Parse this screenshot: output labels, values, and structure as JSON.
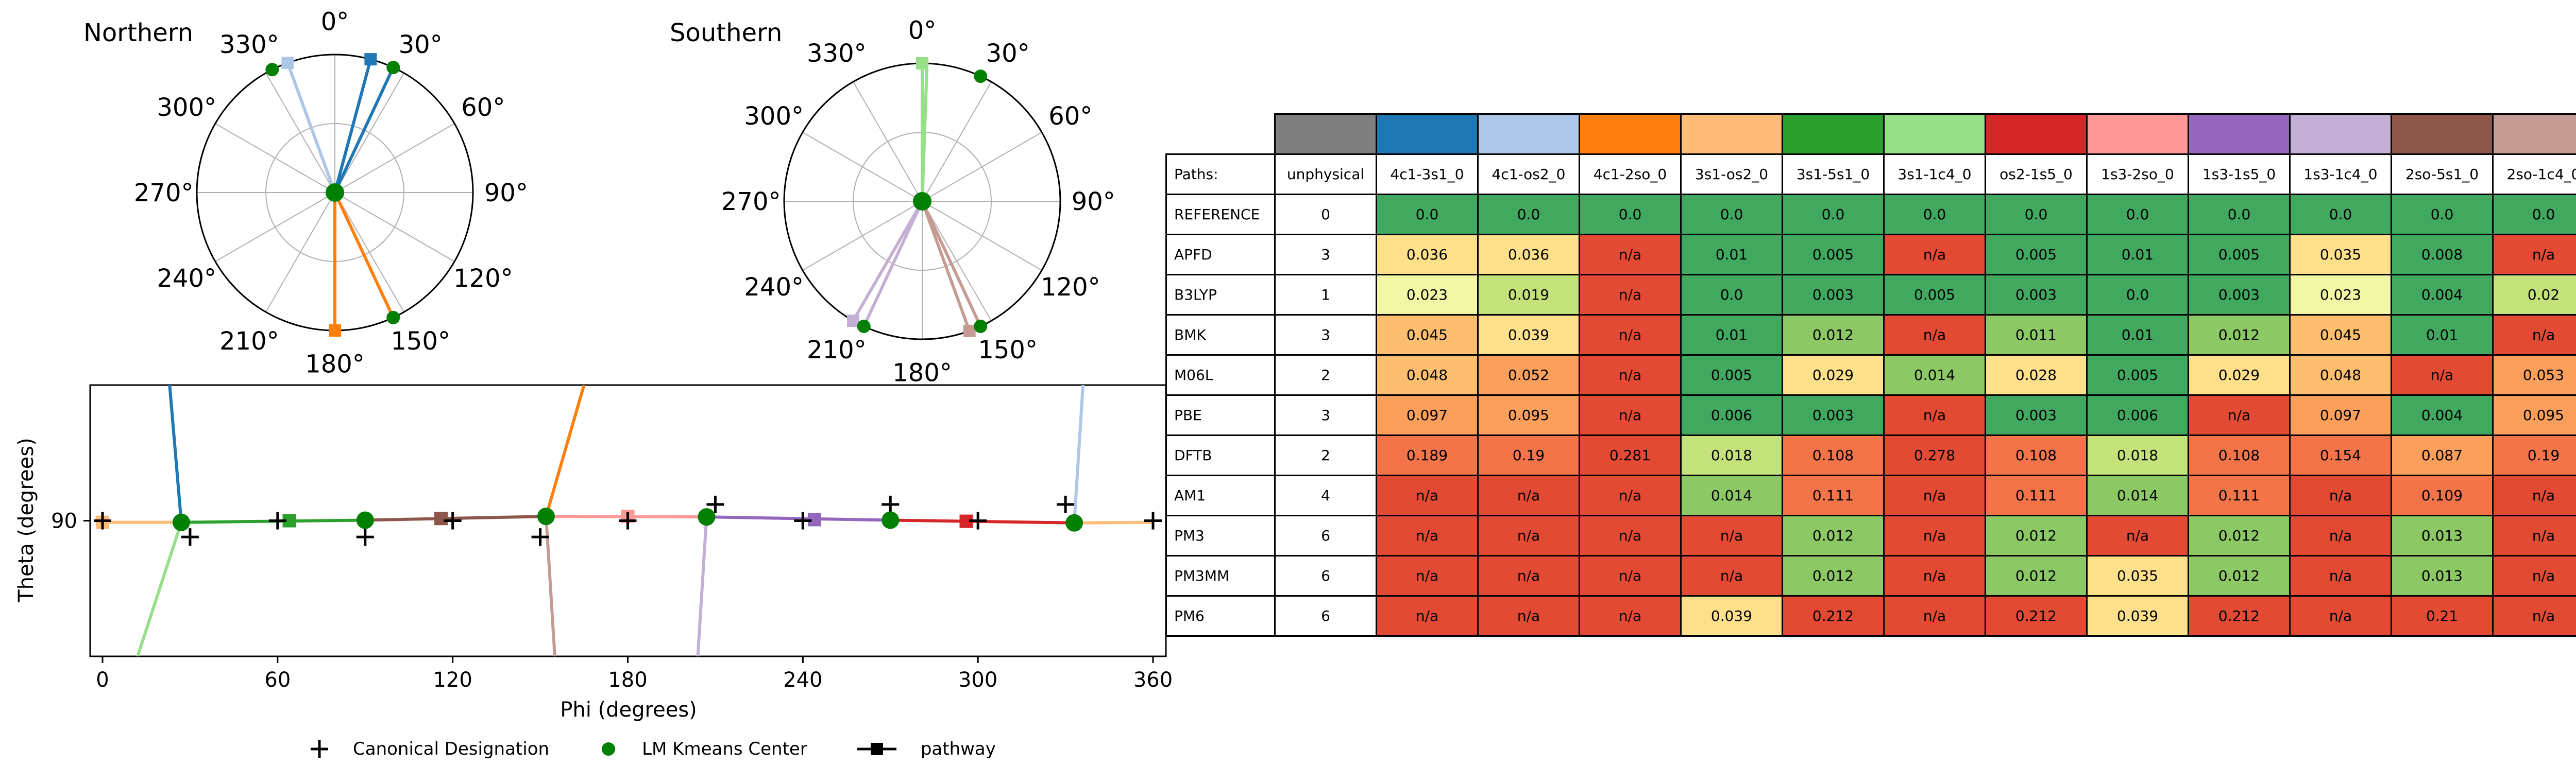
{
  "chart_data": [
    {
      "type": "polar",
      "title": "Northern",
      "angle_ticks": [
        "0°",
        "30°",
        "60°",
        "90°",
        "120°",
        "150°",
        "180°",
        "210°",
        "240°",
        "270°",
        "300°",
        "330°"
      ],
      "paths": [
        {
          "color": "#1f77b4",
          "from_angle": 0,
          "to_angle": 25,
          "to_r": 1.0,
          "square_angle": 15
        },
        {
          "color": "#aec7e8",
          "from_angle": 0,
          "to_angle": 340,
          "to_r": 1.0,
          "square_angle": 340
        },
        {
          "color": "#ff7f0e",
          "from_angle": 0,
          "to_angle": 155,
          "to_r": 1.0,
          "square_angle": 180
        }
      ],
      "centers": [
        {
          "angle": 0,
          "r": 0
        },
        {
          "angle": 25,
          "r": 1.0
        },
        {
          "angle": 333,
          "r": 1.0
        },
        {
          "angle": 155,
          "r": 1.0
        }
      ]
    },
    {
      "type": "polar",
      "title": "Southern",
      "angle_ticks": [
        "0°",
        "30°",
        "60°",
        "90°",
        "120°",
        "150°",
        "180°",
        "210°",
        "240°",
        "270°",
        "300°",
        "330°"
      ],
      "paths": [
        {
          "color": "#98df8a",
          "from_angle": 180,
          "to_angle": 2,
          "to_r": 1.0,
          "square_angle": 0
        },
        {
          "color": "#c49c94",
          "from_angle": 180,
          "to_angle": 155,
          "to_r": 1.0,
          "square_angle": 160
        },
        {
          "color": "#c5b0d5",
          "from_angle": 180,
          "to_angle": 205,
          "to_r": 1.0,
          "square_angle": 210
        }
      ],
      "centers": [
        {
          "angle": 0,
          "r": 0
        },
        {
          "angle": 25,
          "r": 1.0
        },
        {
          "angle": 205,
          "r": 1.0
        },
        {
          "angle": 155,
          "r": 1.0
        }
      ]
    },
    {
      "type": "line",
      "xlabel": "Phi (degrees)",
      "ylabel": "Theta (degrees)",
      "xlim": [
        0,
        360
      ],
      "ylim": [
        65,
        115
      ],
      "xticks": [
        0,
        60,
        120,
        180,
        240,
        300,
        360
      ],
      "yticks": [
        90
      ],
      "canonical": [
        {
          "x": 0,
          "y": 90
        },
        {
          "x": 30,
          "y": 87
        },
        {
          "x": 60,
          "y": 90
        },
        {
          "x": 90,
          "y": 87
        },
        {
          "x": 120,
          "y": 90
        },
        {
          "x": 150,
          "y": 87
        },
        {
          "x": 180,
          "y": 90
        },
        {
          "x": 210,
          "y": 93
        },
        {
          "x": 240,
          "y": 90
        },
        {
          "x": 270,
          "y": 93
        },
        {
          "x": 300,
          "y": 90
        },
        {
          "x": 330,
          "y": 93
        },
        {
          "x": 360,
          "y": 90
        }
      ],
      "centers": [
        {
          "x": 27,
          "y": 89.7
        },
        {
          "x": 90,
          "y": 90.1
        },
        {
          "x": 152,
          "y": 90.8
        },
        {
          "x": 207,
          "y": 90.7
        },
        {
          "x": 270,
          "y": 90.1
        },
        {
          "x": 333,
          "y": 89.6
        }
      ],
      "paths": [
        {
          "color": "#ffbb78",
          "points": [
            [
              0,
              89.7
            ],
            [
              27,
              89.7
            ]
          ],
          "square": [
            0,
            89.7
          ]
        },
        {
          "color": "#ffbb78",
          "points": [
            [
              333,
              89.6
            ],
            [
              360,
              89.7
            ]
          ],
          "square": null
        },
        {
          "color": "#2ca02c",
          "points": [
            [
              27,
              89.7
            ],
            [
              90,
              90.1
            ]
          ],
          "square": [
            64,
            90.0
          ]
        },
        {
          "color": "#8c564b",
          "points": [
            [
              90,
              90.1
            ],
            [
              152,
              90.8
            ]
          ],
          "square": [
            116,
            90.4
          ]
        },
        {
          "color": "#ff9896",
          "points": [
            [
              152,
              90.8
            ],
            [
              207,
              90.7
            ]
          ],
          "square": [
            180,
            90.8
          ]
        },
        {
          "color": "#9467bd",
          "points": [
            [
              207,
              90.7
            ],
            [
              270,
              90.1
            ]
          ],
          "square": [
            244,
            90.2
          ]
        },
        {
          "color": "#d62728",
          "points": [
            [
              270,
              90.1
            ],
            [
              333,
              89.6
            ]
          ],
          "square": [
            296,
            89.9
          ]
        },
        {
          "color": "#1f77b4",
          "points": [
            [
              27,
              89.7
            ],
            [
              23,
              115
            ]
          ],
          "square": null
        },
        {
          "color": "#98df8a",
          "points": [
            [
              27,
              89.7
            ],
            [
              12,
              65
            ]
          ],
          "square": null
        },
        {
          "color": "#ff7f0e",
          "points": [
            [
              152,
              90.8
            ],
            [
              165,
              115
            ]
          ],
          "square": null
        },
        {
          "color": "#c49c94",
          "points": [
            [
              152,
              90.8
            ],
            [
              155,
              65
            ]
          ],
          "square": null
        },
        {
          "color": "#c5b0d5",
          "points": [
            [
              207,
              90.7
            ],
            [
              204,
              65
            ]
          ],
          "square": null
        },
        {
          "color": "#aec7e8",
          "points": [
            [
              333,
              89.6
            ],
            [
              336,
              115
            ]
          ],
          "square": null
        }
      ]
    }
  ],
  "legend": {
    "canonical": "Canonical Designation",
    "center": "LM Kmeans Center",
    "pathway": "pathway"
  },
  "table": {
    "header_label": "Paths:",
    "columns": [
      {
        "name": "unphysical",
        "color": "#7f7f7f"
      },
      {
        "name": "4c1-3s1_0",
        "color": "#1f77b4"
      },
      {
        "name": "4c1-os2_0",
        "color": "#aec7e8"
      },
      {
        "name": "4c1-2so_0",
        "color": "#ff7f0e"
      },
      {
        "name": "3s1-os2_0",
        "color": "#ffbb78"
      },
      {
        "name": "3s1-5s1_0",
        "color": "#2ca02c"
      },
      {
        "name": "3s1-1c4_0",
        "color": "#98df8a"
      },
      {
        "name": "os2-1s5_0",
        "color": "#d62728"
      },
      {
        "name": "1s3-2so_0",
        "color": "#ff9896"
      },
      {
        "name": "1s3-1s5_0",
        "color": "#9467bd"
      },
      {
        "name": "1s3-1c4_0",
        "color": "#c5b0d5"
      },
      {
        "name": "2so-5s1_0",
        "color": "#8c564b"
      },
      {
        "name": "2so-1c4_0",
        "color": "#c49c94"
      }
    ],
    "rows": [
      {
        "method": "REFERENCE",
        "unphysical": "0",
        "values": [
          "0.0",
          "0.0",
          "0.0",
          "0.0",
          "0.0",
          "0.0",
          "0.0",
          "0.0",
          "0.0",
          "0.0",
          "0.0",
          "0.0"
        ]
      },
      {
        "method": "APFD",
        "unphysical": "3",
        "values": [
          "0.036",
          "0.036",
          "n/a",
          "0.01",
          "0.005",
          "n/a",
          "0.005",
          "0.01",
          "0.005",
          "0.035",
          "0.008",
          "n/a"
        ]
      },
      {
        "method": "B3LYP",
        "unphysical": "1",
        "values": [
          "0.023",
          "0.019",
          "n/a",
          "0.0",
          "0.003",
          "0.005",
          "0.003",
          "0.0",
          "0.003",
          "0.023",
          "0.004",
          "0.02"
        ]
      },
      {
        "method": "BMK",
        "unphysical": "3",
        "values": [
          "0.045",
          "0.039",
          "n/a",
          "0.01",
          "0.012",
          "n/a",
          "0.011",
          "0.01",
          "0.012",
          "0.045",
          "0.01",
          "n/a"
        ]
      },
      {
        "method": "M06L",
        "unphysical": "2",
        "values": [
          "0.048",
          "0.052",
          "n/a",
          "0.005",
          "0.029",
          "0.014",
          "0.028",
          "0.005",
          "0.029",
          "0.048",
          "n/a",
          "0.053"
        ]
      },
      {
        "method": "PBE",
        "unphysical": "3",
        "values": [
          "0.097",
          "0.095",
          "n/a",
          "0.006",
          "0.003",
          "n/a",
          "0.003",
          "0.006",
          "n/a",
          "0.097",
          "0.004",
          "0.095"
        ]
      },
      {
        "method": "DFTB",
        "unphysical": "2",
        "values": [
          "0.189",
          "0.19",
          "0.281",
          "0.018",
          "0.108",
          "0.278",
          "0.108",
          "0.018",
          "0.108",
          "0.154",
          "0.087",
          "0.19"
        ]
      },
      {
        "method": "AM1",
        "unphysical": "4",
        "values": [
          "n/a",
          "n/a",
          "n/a",
          "0.014",
          "0.111",
          "n/a",
          "0.111",
          "0.014",
          "0.111",
          "n/a",
          "0.109",
          "n/a"
        ]
      },
      {
        "method": "PM3",
        "unphysical": "6",
        "values": [
          "n/a",
          "n/a",
          "n/a",
          "n/a",
          "0.012",
          "n/a",
          "0.012",
          "n/a",
          "0.012",
          "n/a",
          "0.013",
          "n/a"
        ]
      },
      {
        "method": "PM3MM",
        "unphysical": "6",
        "values": [
          "n/a",
          "n/a",
          "n/a",
          "n/a",
          "0.012",
          "n/a",
          "0.012",
          "0.035",
          "0.012",
          "n/a",
          "0.013",
          "n/a"
        ]
      },
      {
        "method": "PM6",
        "unphysical": "6",
        "values": [
          "n/a",
          "n/a",
          "n/a",
          "0.039",
          "0.212",
          "n/a",
          "0.212",
          "0.039",
          "0.212",
          "n/a",
          "0.21",
          "n/a"
        ]
      }
    ],
    "cell_colors": {
      "na": "#e34a33",
      "zero": "#41a85f",
      "scale": [
        "#41a85f",
        "#8cc964",
        "#c3e27a",
        "#f2f7a6",
        "#fee08b",
        "#fdbf6f",
        "#fc9f5b",
        "#f4744a",
        "#e34a33"
      ]
    }
  }
}
